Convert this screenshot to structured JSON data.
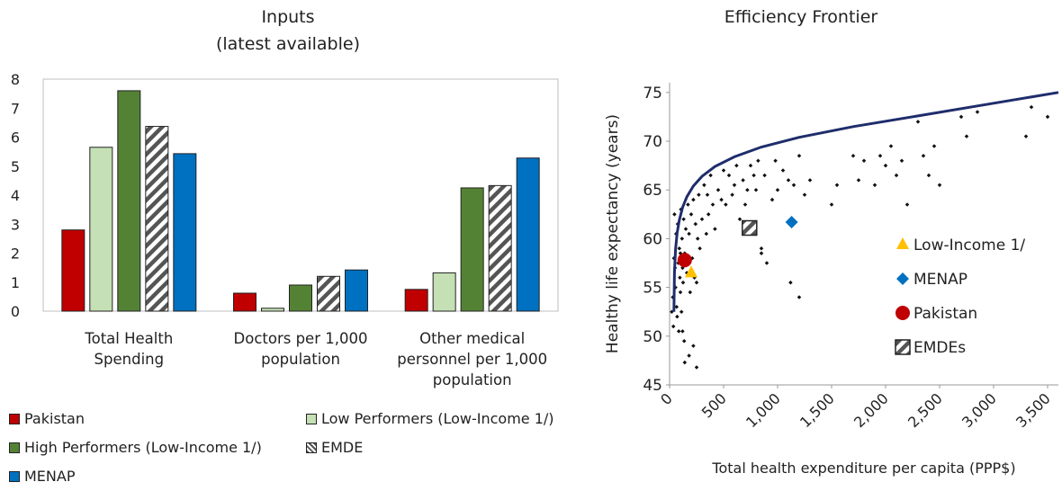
{
  "chart_data": [
    {
      "type": "bar",
      "title": "Inputs",
      "subtitle": "(latest available)",
      "categories": [
        [
          "Total Health",
          "Spending"
        ],
        [
          "Doctors per 1,000",
          "population"
        ],
        [
          "Other medical",
          "personnel per 1,000",
          "population"
        ]
      ],
      "ylim": [
        0,
        8
      ],
      "yticks": [
        0,
        1,
        2,
        3,
        4,
        5,
        6,
        7,
        8
      ],
      "series": [
        {
          "name": "Pakistan",
          "color": "#c00000",
          "pattern": "solid",
          "values": [
            2.8,
            0.62,
            0.75
          ]
        },
        {
          "name": "Low Performers (Low-Income 1/)",
          "color": "#c5e0b4",
          "pattern": "solid",
          "values": [
            5.65,
            0.1,
            1.32
          ]
        },
        {
          "name": "High Performers (Low-Income 1/)",
          "color": "#548235",
          "pattern": "solid",
          "values": [
            7.6,
            0.9,
            4.25
          ]
        },
        {
          "name": "EMDE",
          "color": "#7f7f7f",
          "pattern": "hatch",
          "values": [
            6.37,
            1.2,
            4.33
          ]
        },
        {
          "name": "MENAP",
          "color": "#0070c0",
          "pattern": "solid",
          "values": [
            5.43,
            1.42,
            5.28
          ]
        }
      ],
      "grid": false,
      "legend": "bottom"
    },
    {
      "type": "scatter",
      "title": "Efficiency Frontier",
      "xlabel": "Total health expenditure per capita (PPP$)",
      "ylabel": "Healthy life expectancy (years)",
      "xlim": [
        0,
        3600
      ],
      "ylim": [
        45,
        76
      ],
      "xticks": [
        0,
        500,
        1000,
        1500,
        2000,
        2500,
        3000,
        3500
      ],
      "xtick_labels": [
        "0",
        "500",
        "1,000",
        "1,500",
        "2,000",
        "2,500",
        "3,000",
        "3,500"
      ],
      "yticks": [
        45,
        50,
        55,
        60,
        65,
        70,
        75
      ],
      "frontier": {
        "color": "#1f2d6b",
        "x": [
          40,
          45,
          55,
          70,
          90,
          120,
          160,
          220,
          300,
          420,
          600,
          850,
          1200,
          1700,
          2300,
          3000,
          3600
        ],
        "y": [
          52.5,
          56.5,
          58.9,
          60.6,
          61.9,
          63.2,
          64.3,
          65.4,
          66.4,
          67.4,
          68.4,
          69.4,
          70.4,
          71.5,
          72.6,
          73.9,
          75.0
        ]
      },
      "points": {
        "color": "#111111",
        "x": [
          20,
          30,
          35,
          40,
          45,
          50,
          55,
          60,
          65,
          70,
          75,
          80,
          85,
          90,
          95,
          100,
          105,
          110,
          115,
          120,
          125,
          130,
          135,
          140,
          150,
          160,
          170,
          180,
          190,
          200,
          210,
          220,
          230,
          240,
          250,
          260,
          270,
          280,
          300,
          320,
          340,
          350,
          360,
          380,
          400,
          420,
          450,
          480,
          500,
          520,
          550,
          580,
          600,
          620,
          650,
          680,
          700,
          720,
          750,
          780,
          800,
          820,
          850,
          880,
          900,
          950,
          980,
          1000,
          1050,
          1100,
          1150,
          1200,
          1250,
          1300,
          1500,
          1550,
          1700,
          1750,
          1800,
          1900,
          1950,
          2000,
          2050,
          2100,
          2150,
          2200,
          2300,
          2350,
          2400,
          2450,
          2500,
          2700,
          2750,
          2850,
          3300,
          3350,
          3500,
          220,
          250,
          180,
          140,
          120,
          100,
          1120,
          1200,
          850
        ],
        "y": [
          52.5,
          54.0,
          51.0,
          58.0,
          62.5,
          57.0,
          55.0,
          60.5,
          53.0,
          52.0,
          61.5,
          57.5,
          50.5,
          59.0,
          56.0,
          58.5,
          63.0,
          52.5,
          60.0,
          57.0,
          55.5,
          62.0,
          49.5,
          58.5,
          61.0,
          56.5,
          63.5,
          60.5,
          54.5,
          62.5,
          58.0,
          64.0,
          56.0,
          61.5,
          55.5,
          60.0,
          64.5,
          59.0,
          62.0,
          65.5,
          60.5,
          64.5,
          62.5,
          66.5,
          63.5,
          61.0,
          65.0,
          64.0,
          67.0,
          63.5,
          66.5,
          64.5,
          65.5,
          67.5,
          62.0,
          66.0,
          63.5,
          65.0,
          67.5,
          66.5,
          65.0,
          68.0,
          59.0,
          66.5,
          57.5,
          64.0,
          68.0,
          65.0,
          67.0,
          66.0,
          65.5,
          68.5,
          64.5,
          66.0,
          63.5,
          65.5,
          68.5,
          66.0,
          68.0,
          65.5,
          68.5,
          67.5,
          69.5,
          66.5,
          68.0,
          63.5,
          72.0,
          68.5,
          66.5,
          69.5,
          65.5,
          72.5,
          70.5,
          73.0,
          70.5,
          73.5,
          72.5,
          49.0,
          46.8,
          48.0,
          47.3,
          50.5,
          54.5,
          55.5,
          54.0,
          58.5
        ],
        "highlight": [
          {
            "name": "Low-Income 1/",
            "x": 200,
            "y": 56.5,
            "marker": "triangle",
            "color": "#ffc000"
          },
          {
            "name": "MENAP",
            "x": 1130,
            "y": 61.7,
            "marker": "diamond",
            "color": "#0070c0"
          },
          {
            "name": "Pakistan",
            "x": 140,
            "y": 57.8,
            "marker": "circle",
            "color": "#c00000"
          },
          {
            "name": "EMDEs",
            "x": 740,
            "y": 61.1,
            "marker": "hatched-square",
            "color": "#7f7f7f"
          }
        ]
      },
      "legend": "inside-right"
    }
  ]
}
